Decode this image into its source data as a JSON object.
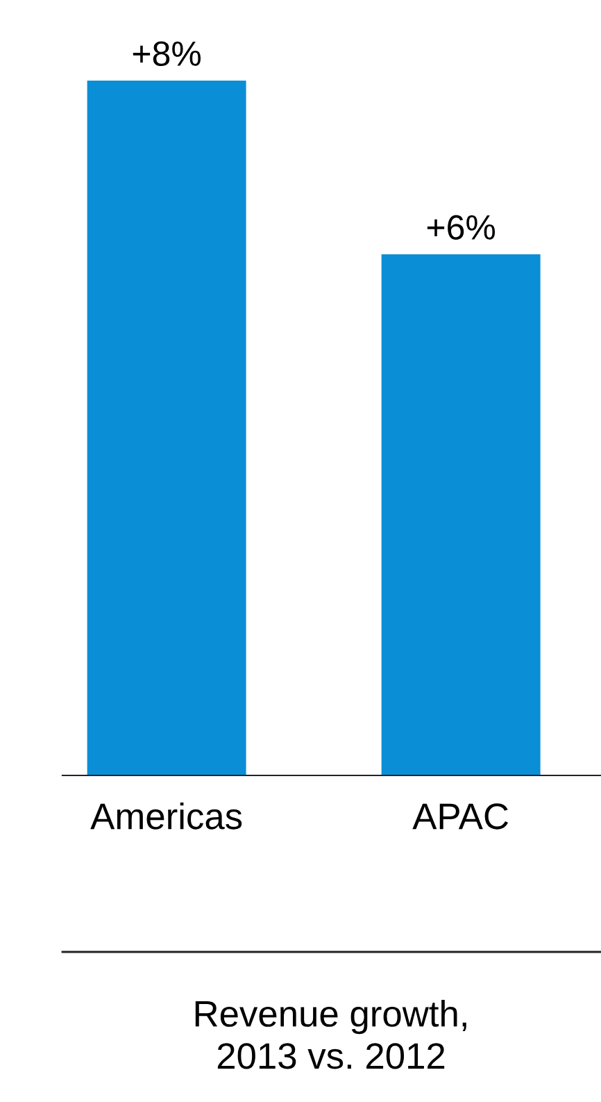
{
  "chart_data": {
    "type": "bar",
    "title": "Revenue growth,\n2013 vs. 2012",
    "categories": [
      "Americas",
      "APAC"
    ],
    "values": [
      8,
      6
    ],
    "value_labels": [
      "+8%",
      "+6%"
    ],
    "color": "#0a8fd6",
    "grid": false,
    "legend": false
  }
}
